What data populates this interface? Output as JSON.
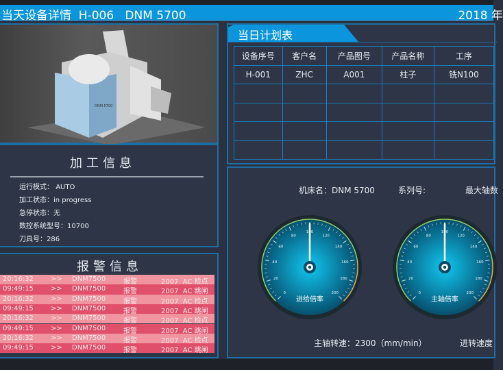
{
  "header": {
    "title": "当天设备详情  H-006   DNM 5700",
    "date": "2018 年"
  },
  "machine_image": {
    "label": "DNM 5700"
  },
  "info": {
    "title": "加工信息",
    "rows": [
      {
        "label": "运行模式：",
        "value": "AUTO"
      },
      {
        "label": "加工状态：",
        "value": "in progress"
      },
      {
        "label": "急停状态：",
        "value": "无"
      },
      {
        "label": "数控系统型号：",
        "value": "10700"
      },
      {
        "label": "刀具号：",
        "value": "286"
      }
    ]
  },
  "alarm": {
    "title": "报警信息",
    "rows": [
      {
        "time": "20:16:32",
        "sep": ">>",
        "device": "DNM7500",
        "type": "报警",
        "code": "2007  AC 检点"
      },
      {
        "time": "09:49:15",
        "sep": ">>",
        "device": "DNM7500",
        "type": "报警",
        "code": "2007  AC 跳闸"
      },
      {
        "time": "20:16:32",
        "sep": ">>",
        "device": "DNM7500",
        "type": "报警",
        "code": "2007  AC 检点"
      },
      {
        "time": "09:49:15",
        "sep": ">>",
        "device": "DNM7500",
        "type": "报警",
        "code": "2007  AC 跳闸"
      },
      {
        "time": "20:16:32",
        "sep": ">>",
        "device": "DNM7500",
        "type": "报警",
        "code": "2007  AC 检点"
      },
      {
        "time": "09:49:15",
        "sep": ">>",
        "device": "DNM7500",
        "type": "报警",
        "code": "2007  AC 跳闸"
      },
      {
        "time": "20:16:32",
        "sep": ">>",
        "device": "DNM7500",
        "type": "报警",
        "code": "2007  AC 检点"
      },
      {
        "time": "09:49:15",
        "sep": ">>",
        "device": "DNM7500",
        "type": "报警",
        "code": "2007  AC 跳闸"
      }
    ],
    "colors": {
      "light": "#f0959f",
      "dark": "#e0506a"
    }
  },
  "plan": {
    "tab": "当日计划表",
    "headers": [
      "设备序号",
      "客户名",
      "产品图号",
      "产品名称",
      "工序"
    ],
    "rows": [
      [
        "H-001",
        "ZHC",
        "A001",
        "柱子",
        "铣N100"
      ],
      [
        "",
        "",
        "",
        "",
        ""
      ],
      [
        "",
        "",
        "",
        "",
        ""
      ],
      [
        "",
        "",
        "",
        "",
        ""
      ],
      [
        "",
        "",
        "",
        "",
        ""
      ]
    ]
  },
  "machine_info": {
    "name": "机床名：DNM 5700",
    "series": "系列号:",
    "max_axes": "最大轴数",
    "spindle_speed": "主轴转速：2300（mm/min）",
    "feed_speed": "进转速度"
  },
  "gauges": [
    {
      "label": "进给倍率",
      "value": 100,
      "min": 0,
      "max": 200,
      "ticks": [
        0,
        20,
        40,
        60,
        80,
        100,
        120,
        140,
        160,
        180,
        200
      ]
    },
    {
      "label": "主轴倍率",
      "value": 100,
      "min": 0,
      "max": 200,
      "ticks": [
        0,
        20,
        40,
        60,
        80,
        100,
        120,
        140,
        160,
        180,
        200
      ]
    }
  ],
  "colors": {
    "accent": "#0a95dd",
    "panel": "#2d3546",
    "border": "#1d6fa3"
  }
}
